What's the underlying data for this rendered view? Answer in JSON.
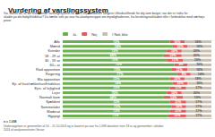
{
  "chart_data": {
    "type": "bar",
    "orientation": "horizontal",
    "stacked": true,
    "data_labels": true,
    "legend": "top",
    "tick_labels": "y",
    "title": "Vurdering af varslingssystem",
    "subtitle": [
      "Ga: Mener du, at det nuværende varslingssystem for store vejrhændelser fungerer tilfredsstillende for dig som borger, når der er risiko for",
      "skader på din bolig/fritidshus? Du tænke selv på svar fra alarmprincippet om myndighedernes, fra forsikringsselskabet eller i forbindelse med særhøje priser"
    ],
    "annotations": [
      "n = 1.098",
      "Undersøgelsen er gennemført af 10. - 21.10.2024 og er baseret på svar fra 1.098 danskere over 18 år og gennemført i oktober 2024 af analyseinstituttet Verian."
    ],
    "categories": [
      "Alle",
      "Mænd",
      "Kvinder",
      "18 - 29 år",
      "30 - 59 år",
      "60+ år",
      "Rød opposition",
      "Regering",
      "Blå opposition",
      "Ejr. af hus/rækkehus/fritidshus",
      "Ejre. af lejlighed",
      "Lejer",
      "Normalt bom",
      "Sjældent",
      "Sommetider",
      "Moderat",
      "Hyppigt"
    ],
    "xlim": [
      0,
      100
    ],
    "series": [
      {
        "name": "Ja",
        "color": "#6ab04c",
        "values": [
          72,
          74,
          70,
          68,
          70,
          75,
          73,
          77,
          72,
          74,
          72,
          70,
          68,
          72,
          73,
          72,
          71
        ],
        "value_labels": [
          "72%",
          "74%",
          "70%",
          "68%",
          "70%",
          "75%",
          "73%",
          "77%",
          "72%",
          "74%",
          "72%",
          "70%",
          "68%",
          "72%",
          "73%",
          "72%",
          "71%"
        ]
      },
      {
        "name": "Nej",
        "color": "#e05c5c",
        "values": [
          10,
          10,
          10,
          12,
          11,
          9,
          11,
          9,
          10,
          10,
          11,
          10,
          13,
          11,
          10,
          11,
          12
        ],
        "value_labels": [
          "10%",
          "10%",
          "10%",
          "12%",
          "11%",
          "9%",
          "11%",
          "9%",
          "10%",
          "10%",
          "11%",
          "10%",
          "13%",
          "11%",
          "10%",
          "11%",
          "12%"
        ]
      },
      {
        "name": "I Nok ikke",
        "color": "#c8bfb0",
        "values": [
          18,
          16,
          20,
          20,
          19,
          16,
          16,
          14,
          18,
          16,
          17,
          20,
          19,
          17,
          17,
          17,
          17
        ],
        "value_labels": [
          "18%",
          "16%",
          "20%",
          "20%",
          "19%",
          "16%",
          "16%",
          "14%",
          "18%",
          "16%",
          "17%",
          "20%",
          "19%",
          "17%",
          "17%",
          "17%",
          "17%"
        ]
      }
    ]
  }
}
